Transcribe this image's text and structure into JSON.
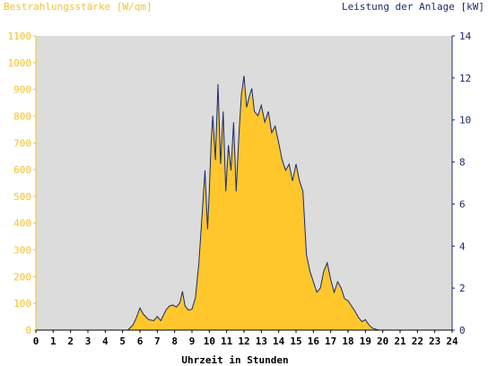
{
  "chart_data": {
    "type": "area",
    "title_left": "Bestrahlungsstärke [W/qm]",
    "title_right": "Leistung der Anlage [kW]",
    "xlabel": "Uhrzeit in Stunden",
    "xlim": [
      0,
      24
    ],
    "ylim_left": [
      0,
      1100
    ],
    "ylim_right": [
      0,
      14
    ],
    "x_ticks": [
      "0",
      "1",
      "2",
      "3",
      "4",
      "5",
      "6",
      "7",
      "8",
      "9",
      "10",
      "11",
      "12",
      "13",
      "14",
      "15",
      "16",
      "17",
      "18",
      "19",
      "20",
      "21",
      "22",
      "23",
      "24"
    ],
    "y_left_ticks": [
      "0",
      "100",
      "200",
      "300",
      "400",
      "500",
      "600",
      "700",
      "800",
      "900",
      "1000",
      "1100"
    ],
    "y_right_ticks": [
      "0",
      "2",
      "4",
      "6",
      "8",
      "10",
      "12",
      "14"
    ],
    "grid": false,
    "colors": {
      "plot_background": "#dcdcdc",
      "irradiance_fill": "#ffc72c",
      "power_line": "#1a2a6c",
      "left_axis": "#f5c030",
      "right_axis": "#1a2a6c"
    },
    "series": [
      {
        "name": "Bestrahlungsstärke [W/qm]",
        "axis": "left",
        "x": [
          0,
          5.3,
          5.6,
          5.8,
          6.0,
          6.2,
          6.5,
          6.8,
          7.0,
          7.2,
          7.5,
          7.7,
          7.9,
          8.1,
          8.3,
          8.45,
          8.6,
          8.8,
          9.0,
          9.2,
          9.4,
          9.6,
          9.75,
          9.9,
          10.0,
          10.1,
          10.2,
          10.35,
          10.5,
          10.65,
          10.8,
          10.95,
          11.1,
          11.25,
          11.4,
          11.55,
          11.7,
          11.85,
          12.0,
          12.15,
          12.3,
          12.45,
          12.6,
          12.8,
          13.0,
          13.2,
          13.4,
          13.6,
          13.8,
          14.0,
          14.2,
          14.4,
          14.6,
          14.8,
          15.0,
          15.2,
          15.4,
          15.6,
          15.8,
          16.0,
          16.2,
          16.4,
          16.6,
          16.8,
          17.0,
          17.2,
          17.4,
          17.6,
          17.8,
          18.0,
          18.2,
          18.4,
          18.6,
          18.8,
          19.0,
          19.2,
          19.4,
          19.6,
          19.8,
          20.0,
          24
        ],
        "y": [
          0,
          0,
          20,
          50,
          85,
          60,
          40,
          35,
          50,
          35,
          75,
          90,
          95,
          85,
          100,
          140,
          90,
          75,
          80,
          120,
          250,
          450,
          600,
          380,
          520,
          700,
          800,
          640,
          880,
          620,
          820,
          520,
          690,
          600,
          780,
          520,
          720,
          880,
          950,
          830,
          870,
          900,
          820,
          800,
          840,
          780,
          820,
          740,
          760,
          700,
          640,
          600,
          620,
          560,
          620,
          560,
          520,
          280,
          220,
          180,
          140,
          160,
          220,
          250,
          190,
          140,
          180,
          160,
          120,
          110,
          90,
          70,
          50,
          30,
          40,
          20,
          8,
          3,
          0,
          0,
          0
        ]
      },
      {
        "name": "Leistung der Anlage [kW]",
        "axis": "right",
        "x": [
          0,
          5.3,
          5.6,
          5.8,
          6.0,
          6.2,
          6.5,
          6.8,
          7.0,
          7.2,
          7.5,
          7.7,
          7.9,
          8.1,
          8.3,
          8.45,
          8.6,
          8.8,
          9.0,
          9.2,
          9.4,
          9.6,
          9.75,
          9.9,
          10.0,
          10.1,
          10.2,
          10.35,
          10.5,
          10.65,
          10.8,
          10.95,
          11.1,
          11.25,
          11.4,
          11.55,
          11.7,
          11.85,
          12.0,
          12.15,
          12.3,
          12.45,
          12.6,
          12.8,
          13.0,
          13.2,
          13.4,
          13.6,
          13.8,
          14.0,
          14.2,
          14.4,
          14.6,
          14.8,
          15.0,
          15.2,
          15.4,
          15.6,
          15.8,
          16.0,
          16.2,
          16.4,
          16.6,
          16.8,
          17.0,
          17.2,
          17.4,
          17.6,
          17.8,
          18.0,
          18.2,
          18.4,
          18.6,
          18.8,
          19.0,
          19.2,
          19.4,
          19.6,
          19.8,
          20.0,
          24
        ],
        "y": [
          0,
          0,
          0.25,
          0.6,
          1.05,
          0.75,
          0.5,
          0.45,
          0.65,
          0.45,
          0.95,
          1.15,
          1.2,
          1.1,
          1.3,
          1.85,
          1.15,
          0.95,
          1.0,
          1.55,
          3.2,
          5.7,
          7.6,
          4.8,
          6.6,
          8.9,
          10.2,
          8.1,
          11.7,
          7.9,
          10.4,
          6.6,
          8.8,
          7.6,
          9.9,
          6.6,
          9.2,
          11.2,
          12.1,
          10.6,
          11.1,
          11.5,
          10.4,
          10.2,
          10.7,
          9.9,
          10.4,
          9.4,
          9.7,
          8.9,
          8.1,
          7.6,
          7.9,
          7.1,
          7.9,
          7.1,
          6.6,
          3.6,
          2.8,
          2.3,
          1.8,
          2.0,
          2.8,
          3.2,
          2.4,
          1.8,
          2.3,
          2.0,
          1.5,
          1.4,
          1.15,
          0.9,
          0.6,
          0.4,
          0.5,
          0.25,
          0.1,
          0.04,
          0,
          0,
          0
        ]
      }
    ]
  }
}
